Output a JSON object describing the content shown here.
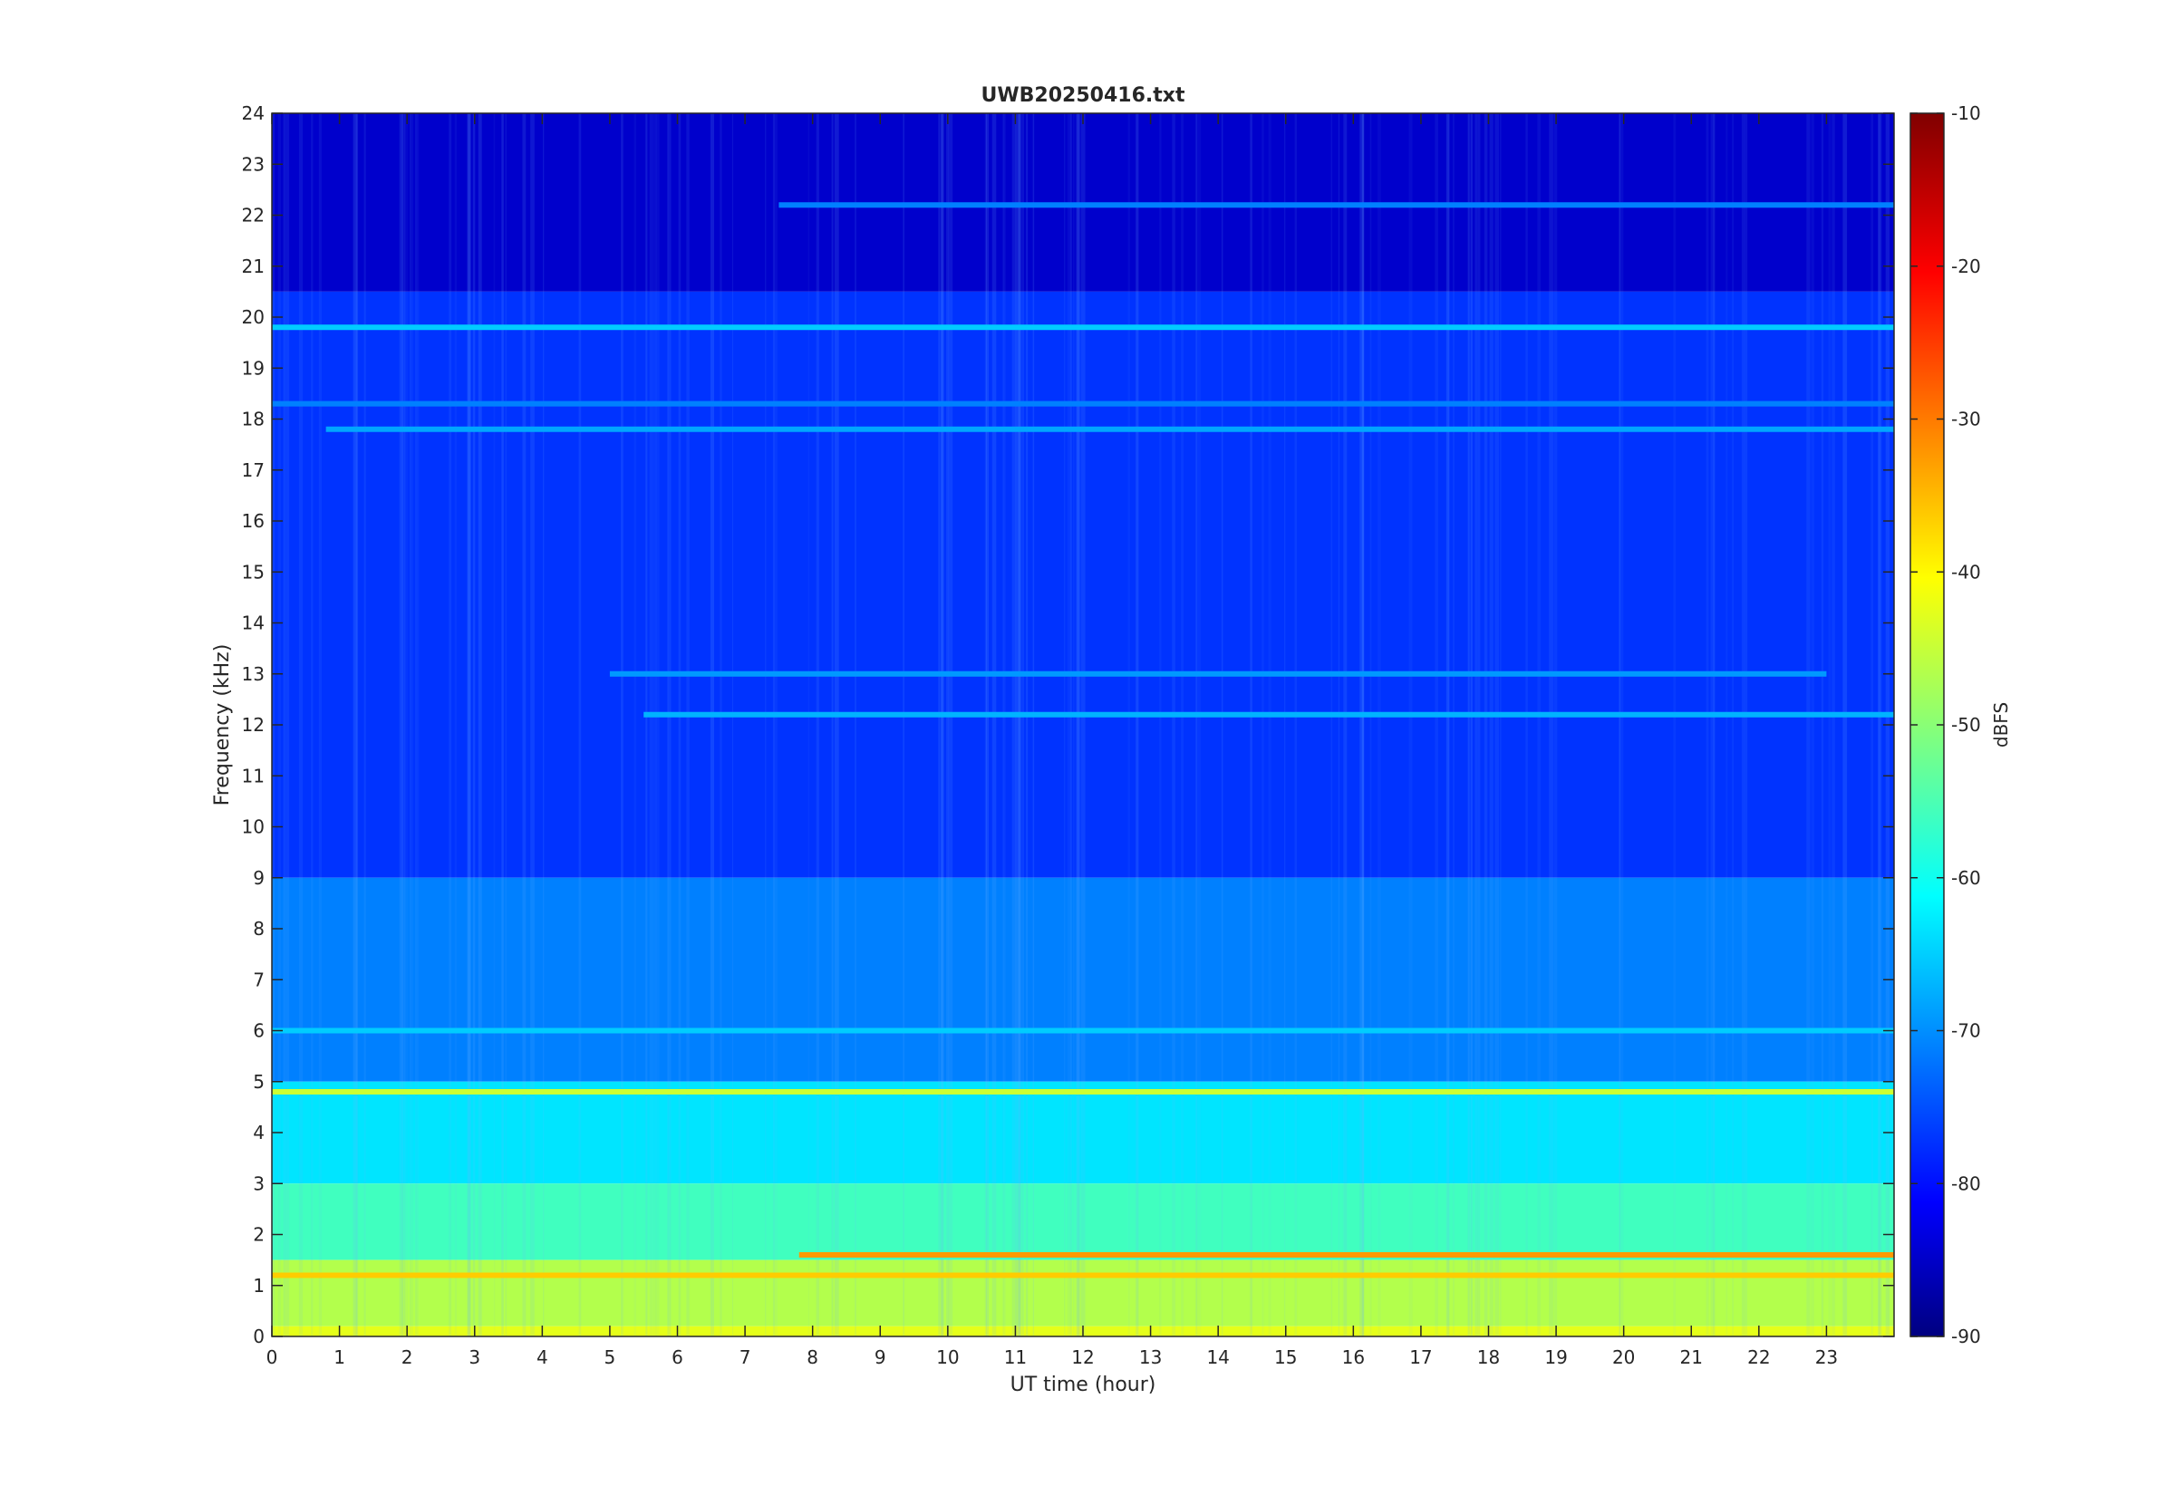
{
  "chart_data": {
    "type": "heatmap",
    "title": "UWB20250416.txt",
    "xlabel": "UT time (hour)",
    "ylabel": "Frequency (kHz)",
    "xlim": [
      0,
      24
    ],
    "ylim": [
      0,
      24
    ],
    "x_ticks": [
      0,
      1,
      2,
      3,
      4,
      5,
      6,
      7,
      8,
      9,
      10,
      11,
      12,
      13,
      14,
      15,
      16,
      17,
      18,
      19,
      20,
      21,
      22,
      23
    ],
    "y_ticks": [
      0,
      1,
      2,
      3,
      4,
      5,
      6,
      7,
      8,
      9,
      10,
      11,
      12,
      13,
      14,
      15,
      16,
      17,
      18,
      19,
      20,
      21,
      22,
      23,
      24
    ],
    "colorbar": {
      "label": "dBFS",
      "colormap": "jet",
      "range": [
        -90,
        -10
      ],
      "ticks": [
        -10,
        -20,
        -30,
        -40,
        -50,
        -60,
        -70,
        -80,
        -90
      ]
    },
    "background_level_dbfs": [
      {
        "freq_khz": [
          20.5,
          24
        ],
        "dbfs": -84
      },
      {
        "freq_khz": [
          9,
          20.5
        ],
        "dbfs": -76
      },
      {
        "freq_khz": [
          5,
          9
        ],
        "dbfs": -70
      },
      {
        "freq_khz": [
          3,
          5
        ],
        "dbfs": -62
      },
      {
        "freq_khz": [
          1.5,
          3
        ],
        "dbfs": -55
      },
      {
        "freq_khz": [
          0.2,
          1.5
        ],
        "dbfs": -46
      },
      {
        "freq_khz": [
          0,
          0.2
        ],
        "dbfs": -42
      }
    ],
    "series": [
      {
        "name": "",
        "freq_khz": 19.8,
        "hours": [
          0,
          24
        ],
        "dbfs": -64
      },
      {
        "name": "",
        "freq_khz": 18.3,
        "hours": [
          0,
          24
        ],
        "dbfs": -70
      },
      {
        "name": "",
        "freq_khz": 17.8,
        "hours": [
          0.8,
          24
        ],
        "dbfs": -67
      },
      {
        "name": "",
        "freq_khz": 4.8,
        "hours": [
          0,
          24
        ],
        "dbfs": -44
      },
      {
        "name": "",
        "freq_khz": 6.0,
        "hours": [
          0,
          24
        ],
        "dbfs": -64
      },
      {
        "name": "",
        "freq_khz": 1.2,
        "hours": [
          0,
          24
        ],
        "dbfs": -36
      },
      {
        "name": "",
        "freq_khz": 1.6,
        "hours": [
          7.8,
          24
        ],
        "dbfs": -32
      },
      {
        "name": "",
        "freq_khz": 12.2,
        "hours": [
          5.5,
          24
        ],
        "dbfs": -66
      },
      {
        "name": "",
        "freq_khz": 13.0,
        "hours": [
          5,
          23
        ],
        "dbfs": -68
      },
      {
        "name": "",
        "freq_khz": 22.2,
        "hours": [
          7.5,
          24
        ],
        "dbfs": -70
      }
    ]
  }
}
